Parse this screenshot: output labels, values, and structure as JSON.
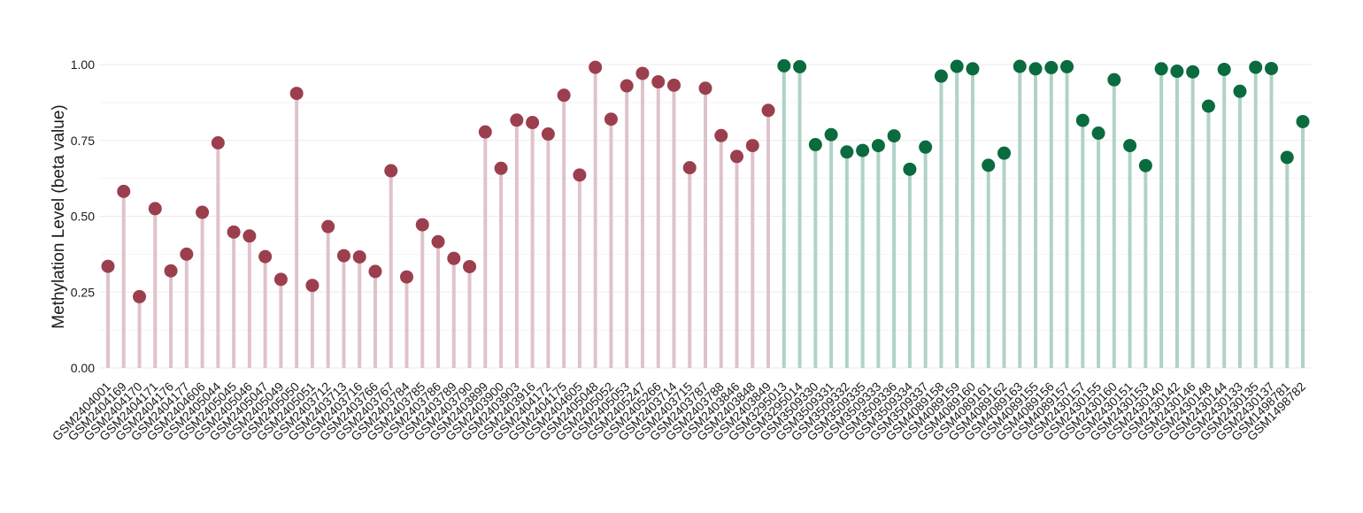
{
  "chart_data": {
    "type": "lollipop",
    "ylabel": "Methylation Level (beta value)",
    "xlabel": "",
    "title": "",
    "ylim": [
      0,
      1.0
    ],
    "yticks": [
      0.0,
      0.25,
      0.5,
      0.75,
      1.0
    ],
    "ytick_labels": [
      "0.00",
      "0.25",
      "0.50",
      "0.75",
      "1.00"
    ],
    "grid": true,
    "legend": "none",
    "group_colors": {
      "A": {
        "point": "#9b3f4e",
        "stem": "#dfc3ca"
      },
      "B": {
        "point": "#0a6b3f",
        "stem": "#b0d2c7"
      }
    },
    "samples": [
      {
        "id": "GSM2404001",
        "value": 0.335,
        "group": "A"
      },
      {
        "id": "GSM2404169",
        "value": 0.582,
        "group": "A"
      },
      {
        "id": "GSM2404170",
        "value": 0.235,
        "group": "A"
      },
      {
        "id": "GSM2404171",
        "value": 0.525,
        "group": "A"
      },
      {
        "id": "GSM2404176",
        "value": 0.32,
        "group": "A"
      },
      {
        "id": "GSM2404177",
        "value": 0.375,
        "group": "A"
      },
      {
        "id": "GSM2404606",
        "value": 0.513,
        "group": "A"
      },
      {
        "id": "GSM2405044",
        "value": 0.742,
        "group": "A"
      },
      {
        "id": "GSM2405045",
        "value": 0.448,
        "group": "A"
      },
      {
        "id": "GSM2405046",
        "value": 0.435,
        "group": "A"
      },
      {
        "id": "GSM2405047",
        "value": 0.367,
        "group": "A"
      },
      {
        "id": "GSM2405049",
        "value": 0.292,
        "group": "A"
      },
      {
        "id": "GSM2405050",
        "value": 0.905,
        "group": "A"
      },
      {
        "id": "GSM2405051",
        "value": 0.272,
        "group": "A"
      },
      {
        "id": "GSM2403712",
        "value": 0.466,
        "group": "A"
      },
      {
        "id": "GSM2403713",
        "value": 0.37,
        "group": "A"
      },
      {
        "id": "GSM2403716",
        "value": 0.366,
        "group": "A"
      },
      {
        "id": "GSM2403766",
        "value": 0.318,
        "group": "A"
      },
      {
        "id": "GSM2403767",
        "value": 0.65,
        "group": "A"
      },
      {
        "id": "GSM2403784",
        "value": 0.3,
        "group": "A"
      },
      {
        "id": "GSM2403785",
        "value": 0.472,
        "group": "A"
      },
      {
        "id": "GSM2403786",
        "value": 0.416,
        "group": "A"
      },
      {
        "id": "GSM2403789",
        "value": 0.361,
        "group": "A"
      },
      {
        "id": "GSM2403790",
        "value": 0.334,
        "group": "A"
      },
      {
        "id": "GSM2403899",
        "value": 0.778,
        "group": "A"
      },
      {
        "id": "GSM2403900",
        "value": 0.658,
        "group": "A"
      },
      {
        "id": "GSM2403903",
        "value": 0.817,
        "group": "A"
      },
      {
        "id": "GSM2403916",
        "value": 0.809,
        "group": "A"
      },
      {
        "id": "GSM2404172",
        "value": 0.771,
        "group": "A"
      },
      {
        "id": "GSM2404175",
        "value": 0.899,
        "group": "A"
      },
      {
        "id": "GSM2404605",
        "value": 0.636,
        "group": "A"
      },
      {
        "id": "GSM2405048",
        "value": 0.991,
        "group": "A"
      },
      {
        "id": "GSM2405052",
        "value": 0.82,
        "group": "A"
      },
      {
        "id": "GSM2405053",
        "value": 0.93,
        "group": "A"
      },
      {
        "id": "GSM2405247",
        "value": 0.971,
        "group": "A"
      },
      {
        "id": "GSM2405266",
        "value": 0.943,
        "group": "A"
      },
      {
        "id": "GSM2403714",
        "value": 0.932,
        "group": "A"
      },
      {
        "id": "GSM2403715",
        "value": 0.66,
        "group": "A"
      },
      {
        "id": "GSM2403787",
        "value": 0.922,
        "group": "A"
      },
      {
        "id": "GSM2403788",
        "value": 0.766,
        "group": "A"
      },
      {
        "id": "GSM2403846",
        "value": 0.697,
        "group": "A"
      },
      {
        "id": "GSM2403848",
        "value": 0.733,
        "group": "A"
      },
      {
        "id": "GSM2403849",
        "value": 0.849,
        "group": "A"
      },
      {
        "id": "GSM3295013",
        "value": 0.996,
        "group": "B"
      },
      {
        "id": "GSM3295014",
        "value": 0.993,
        "group": "B"
      },
      {
        "id": "GSM3509330",
        "value": 0.736,
        "group": "B"
      },
      {
        "id": "GSM3509331",
        "value": 0.769,
        "group": "B"
      },
      {
        "id": "GSM3509332",
        "value": 0.712,
        "group": "B"
      },
      {
        "id": "GSM3509335",
        "value": 0.717,
        "group": "B"
      },
      {
        "id": "GSM3509333",
        "value": 0.733,
        "group": "B"
      },
      {
        "id": "GSM3509336",
        "value": 0.765,
        "group": "B"
      },
      {
        "id": "GSM3509334",
        "value": 0.655,
        "group": "B"
      },
      {
        "id": "GSM3509337",
        "value": 0.728,
        "group": "B"
      },
      {
        "id": "GSM4089158",
        "value": 0.962,
        "group": "B"
      },
      {
        "id": "GSM4089159",
        "value": 0.994,
        "group": "B"
      },
      {
        "id": "GSM4089160",
        "value": 0.986,
        "group": "B"
      },
      {
        "id": "GSM4089161",
        "value": 0.668,
        "group": "B"
      },
      {
        "id": "GSM4089162",
        "value": 0.708,
        "group": "B"
      },
      {
        "id": "GSM4089163",
        "value": 0.994,
        "group": "B"
      },
      {
        "id": "GSM4089155",
        "value": 0.986,
        "group": "B"
      },
      {
        "id": "GSM4089156",
        "value": 0.99,
        "group": "B"
      },
      {
        "id": "GSM4089157",
        "value": 0.993,
        "group": "B"
      },
      {
        "id": "GSM2430157",
        "value": 0.816,
        "group": "B"
      },
      {
        "id": "GSM2430155",
        "value": 0.774,
        "group": "B"
      },
      {
        "id": "GSM2430160",
        "value": 0.95,
        "group": "B"
      },
      {
        "id": "GSM2430151",
        "value": 0.733,
        "group": "B"
      },
      {
        "id": "GSM2430153",
        "value": 0.667,
        "group": "B"
      },
      {
        "id": "GSM2430140",
        "value": 0.986,
        "group": "B"
      },
      {
        "id": "GSM2430142",
        "value": 0.978,
        "group": "B"
      },
      {
        "id": "GSM2430146",
        "value": 0.976,
        "group": "B"
      },
      {
        "id": "GSM2430148",
        "value": 0.863,
        "group": "B"
      },
      {
        "id": "GSM2430144",
        "value": 0.984,
        "group": "B"
      },
      {
        "id": "GSM2430133",
        "value": 0.912,
        "group": "B"
      },
      {
        "id": "GSM2430135",
        "value": 0.991,
        "group": "B"
      },
      {
        "id": "GSM2430137",
        "value": 0.987,
        "group": "B"
      },
      {
        "id": "GSM1498781",
        "value": 0.694,
        "group": "B"
      },
      {
        "id": "GSM1498782",
        "value": 0.812,
        "group": "B"
      }
    ]
  }
}
